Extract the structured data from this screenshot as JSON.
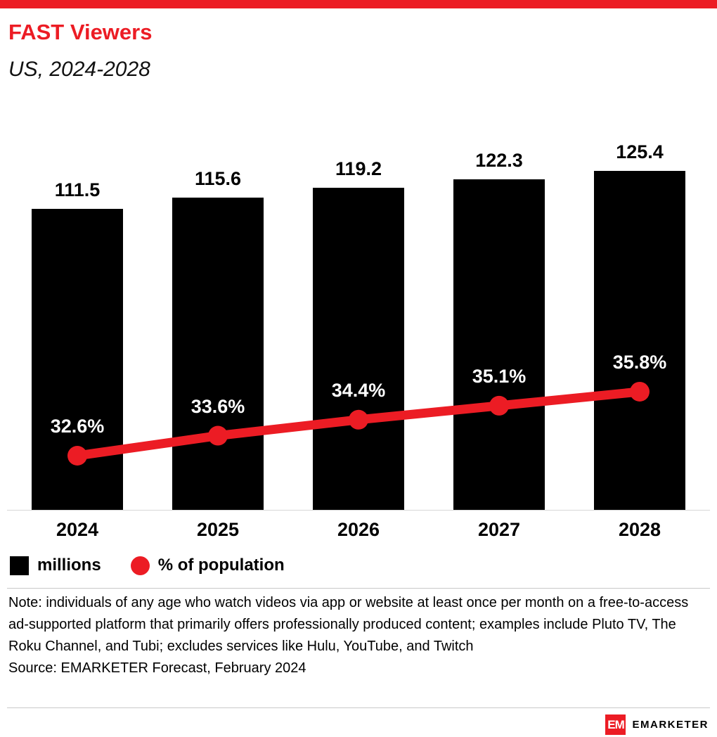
{
  "header": {
    "title": "FAST Viewers",
    "subtitle": "US, 2024-2028"
  },
  "chart_data": {
    "type": "bar",
    "title": "FAST Viewers",
    "subtitle": "US, 2024-2028",
    "categories": [
      "2024",
      "2025",
      "2026",
      "2027",
      "2028"
    ],
    "series": [
      {
        "name": "millions",
        "type": "bar",
        "color": "#000000",
        "values": [
          111.5,
          115.6,
          119.2,
          122.3,
          125.4
        ],
        "value_labels": [
          "111.5",
          "115.6",
          "119.2",
          "122.3",
          "125.4"
        ]
      },
      {
        "name": "% of population",
        "type": "line",
        "color": "#EC1C24",
        "values": [
          32.6,
          33.6,
          34.4,
          35.1,
          35.8
        ],
        "value_labels": [
          "32.6%",
          "33.6%",
          "34.4%",
          "35.1%",
          "35.8%"
        ]
      }
    ],
    "legend": [
      {
        "label": "millions",
        "swatch": "square",
        "color": "#000000"
      },
      {
        "label": "% of population",
        "swatch": "circle",
        "color": "#EC1C24"
      }
    ],
    "legend_position": "bottom",
    "grid": false,
    "xlabel": "",
    "ylabel": ""
  },
  "footer": {
    "note": "Note: individuals of any age who watch videos via app or website at least once per month on a free-to-access ad-supported platform that primarily offers professionally produced content; examples include Pluto TV, The Roku Channel, and Tubi; excludes services like Hulu, YouTube, and Twitch",
    "source": "Source: EMARKETER Forecast, February 2024"
  },
  "branding": {
    "accent_color": "#EC1C24",
    "logo_text": "EM",
    "brand_name": "EMARKETER"
  }
}
